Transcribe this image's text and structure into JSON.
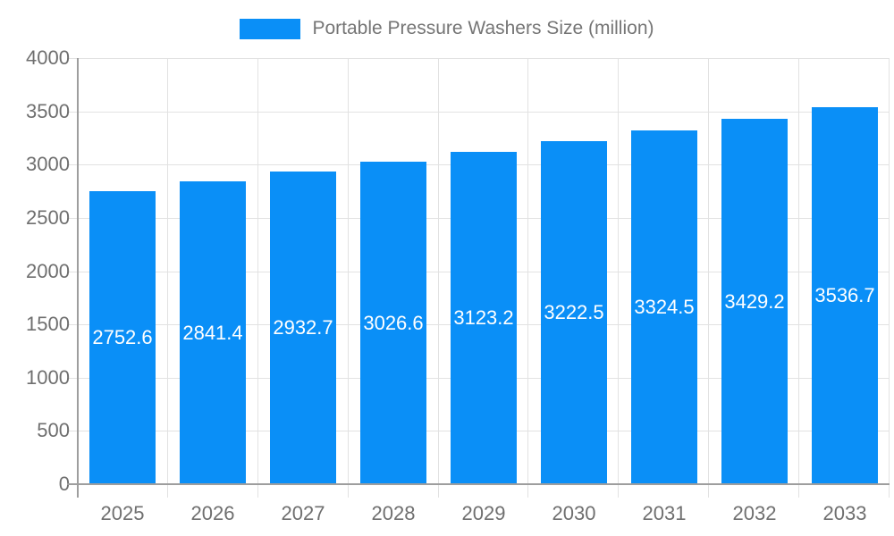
{
  "legend": {
    "label": "Portable Pressure Washers Size (million)"
  },
  "chart_data": {
    "type": "bar",
    "title": "Portable Pressure Washers Size (million)",
    "categories": [
      "2025",
      "2026",
      "2027",
      "2028",
      "2029",
      "2030",
      "2031",
      "2032",
      "2033"
    ],
    "values": [
      2752.6,
      2841.4,
      2932.7,
      3026.6,
      3123.2,
      3222.5,
      3324.5,
      3429.2,
      3536.7
    ],
    "xlabel": "",
    "ylabel": "",
    "ylim": [
      0,
      4000
    ],
    "yticks": [
      0,
      500,
      1000,
      1500,
      2000,
      2500,
      3000,
      3500,
      4000
    ],
    "grid": true,
    "legend_position": "top",
    "bar_labels_visible": true
  },
  "colors": {
    "bar": "#0a8ff7",
    "bar_label": "#ffffff",
    "grid": "#e2e2e2",
    "axis": "#9e9e9e",
    "tick_label": "#6f6f6f",
    "legend_label": "#757575",
    "background": "#ffffff"
  }
}
